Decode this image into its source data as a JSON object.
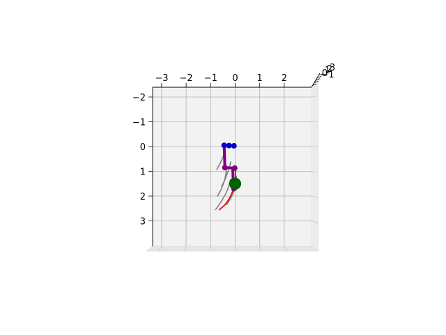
{
  "chart_data": {
    "type": "3d-line",
    "title": "",
    "xlabel": "",
    "ylabel": "",
    "zlabel": "",
    "grid": true,
    "view": "top-down",
    "x_ticks": [
      "−3",
      "−2",
      "−1",
      "0",
      "1",
      "2"
    ],
    "y_ticks": [
      "−2",
      "−1",
      "0",
      "1",
      "2",
      "3"
    ],
    "z_ticks": [
      "−1",
      "0",
      "1",
      "2",
      "3"
    ],
    "xlim": [
      -3.3,
      3.1
    ],
    "ylim": [
      -2.35,
      4.0
    ],
    "series": [
      {
        "role": "ghost-trajectory-1",
        "color": "#808080",
        "points": [
          [
            -0.75,
            0.92
          ],
          [
            -0.62,
            0.7
          ],
          [
            -0.45,
            0.32
          ],
          [
            -0.38,
            0.0
          ]
        ]
      },
      {
        "role": "ghost-trajectory-2",
        "color": "#808080",
        "points": [
          [
            -0.55,
            1.6
          ],
          [
            -0.42,
            1.35
          ],
          [
            -0.27,
            0.95
          ],
          [
            -0.18,
            0.62
          ]
        ]
      },
      {
        "role": "ghost-trajectory-3",
        "color": "#808080",
        "points": [
          [
            -0.72,
            2.0
          ],
          [
            -0.55,
            1.7
          ],
          [
            -0.4,
            1.25
          ],
          [
            -0.35,
            0.88
          ]
        ]
      },
      {
        "role": "ghost-trajectory-4",
        "color": "#808080",
        "points": [
          [
            -0.8,
            2.55
          ],
          [
            -0.55,
            2.2
          ],
          [
            -0.3,
            1.75
          ],
          [
            -0.2,
            1.35
          ]
        ]
      },
      {
        "role": "ghost-trajectory-5",
        "color": "#808080",
        "points": [
          [
            -0.35,
            2.35
          ],
          [
            -0.15,
            2.05
          ],
          [
            0.0,
            1.65
          ],
          [
            0.05,
            1.2
          ]
        ]
      },
      {
        "role": "trajectory-main",
        "color": "#ff0000",
        "points": [
          [
            -0.65,
            2.55
          ],
          [
            -0.4,
            2.35
          ],
          [
            -0.15,
            1.95
          ],
          [
            0.0,
            1.5
          ],
          [
            0.02,
            0.95
          ]
        ]
      },
      {
        "role": "link-top",
        "color": "#0000b4",
        "points": [
          [
            -0.45,
            -0.05
          ],
          [
            -0.05,
            -0.03
          ]
        ]
      },
      {
        "role": "link-side",
        "color": "#800080",
        "points": [
          [
            -0.45,
            -0.05
          ],
          [
            -0.42,
            0.85
          ]
        ]
      },
      {
        "role": "link-mid",
        "color": "#800080",
        "points": [
          [
            -0.42,
            0.85
          ],
          [
            -0.02,
            0.87
          ]
        ]
      },
      {
        "role": "link-lower",
        "color": "#800080",
        "points": [
          [
            -0.1,
            0.87
          ],
          [
            -0.08,
            1.4
          ]
        ]
      }
    ],
    "markers": [
      {
        "role": "joint",
        "color": "#0000cd",
        "x": -0.45,
        "y": -0.05
      },
      {
        "role": "joint",
        "color": "#0000cd",
        "x": -0.25,
        "y": -0.04
      },
      {
        "role": "joint",
        "color": "#0000cd",
        "x": -0.05,
        "y": -0.03
      },
      {
        "role": "joint",
        "color": "#800080",
        "x": -0.42,
        "y": 0.85
      },
      {
        "role": "joint",
        "color": "#800080",
        "x": -0.02,
        "y": 0.87
      },
      {
        "role": "joint",
        "color": "#800080",
        "x": -0.1,
        "y": 1.4
      },
      {
        "role": "joint",
        "color": "#800080",
        "x": -0.05,
        "y": 1.7
      },
      {
        "role": "target",
        "color": "#006400",
        "x": 0.0,
        "y": 1.5
      }
    ]
  }
}
